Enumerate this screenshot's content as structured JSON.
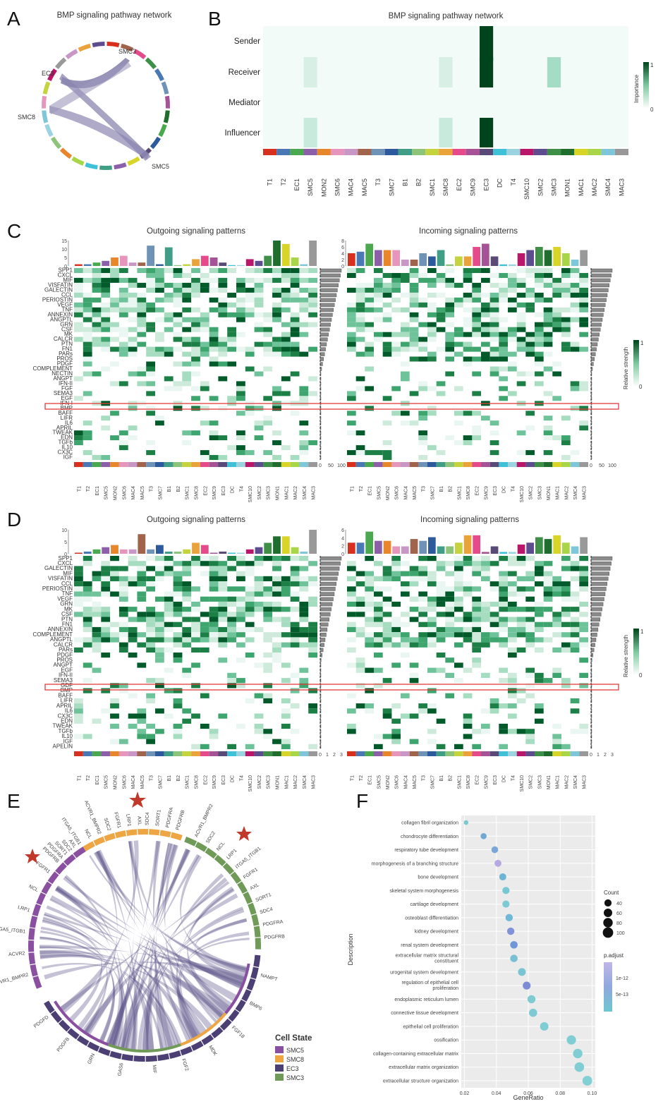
{
  "panels": {
    "A": {
      "letter": "A",
      "title": "BMP signaling pathway network",
      "labels": [
        "SMC3",
        "EC3",
        "SMC8",
        "SMC5"
      ]
    },
    "B": {
      "letter": "B",
      "title": "BMP signaling pathway network",
      "roles": [
        "Sender",
        "Receiver",
        "Mediator",
        "Influencer"
      ],
      "legend_title": "Importance",
      "legend_max": "1",
      "legend_min": "0",
      "cells": [
        "T1",
        "T2",
        "EC1",
        "SMC5",
        "MON2",
        "SMC6",
        "MAC4",
        "MAC5",
        "T3",
        "SMC7",
        "B1",
        "B2",
        "SMC1",
        "SMC8",
        "EC2",
        "SMC9",
        "EC3",
        "DC",
        "T4",
        "SMC10",
        "SMC2",
        "SMC3",
        "MON1",
        "MAC1",
        "MAC2",
        "SMC4",
        "MAC3"
      ],
      "cell_colors": [
        "#d7301f",
        "#4a78b5",
        "#4aa84e",
        "#8d5fa8",
        "#e8862c",
        "#e695bd",
        "#c997c6",
        "#a0634b",
        "#6e93b6",
        "#2c5a9c",
        "#3f9e85",
        "#8cc47a",
        "#c4d33e",
        "#eaa23a",
        "#e54b8a",
        "#a65297",
        "#5a4a78",
        "#3fc1d8",
        "#9bd4e0",
        "#b8176a",
        "#5e4d8e",
        "#3e9048",
        "#1f6e2e",
        "#d9d428",
        "#a9d548",
        "#7ec6d9",
        "#999999"
      ]
    },
    "C": {
      "letter": "C",
      "out_title": "Outgoing signaling patterns",
      "in_title": "Incoming signaling patterns",
      "legend_title": "Relative strength",
      "legend_max": "1",
      "legend_min": "0",
      "out_bar_ticks": [
        "15",
        "10",
        "5",
        "0"
      ],
      "in_bar_ticks": [
        "8",
        "6",
        "4",
        "2",
        "0"
      ],
      "side_ticks": [
        "0",
        "50",
        "100"
      ],
      "highlight": "BMP",
      "pathways": [
        "SPP1",
        "CXCL",
        "MIF",
        "VISFATIN",
        "GALECTIN",
        "CCL",
        "PERIOSTIN",
        "VEGF",
        "TNF",
        "ANNEXIN",
        "ANGPTL",
        "GRN",
        "CSF",
        "MK",
        "CALCR",
        "PTN",
        "FN1",
        "PARs",
        "PROS",
        "PDGF",
        "COMPLEMENT",
        "NECTIN",
        "ANGPT",
        "IFN-II",
        "FGF",
        "SEMA3",
        "EGF",
        "IFN-I",
        "BMP",
        "BAFF",
        "LIFR",
        "IL6",
        "APRIL",
        "TWEAK",
        "EDN",
        "TGFb",
        "IL10",
        "CX3C",
        "IGF"
      ]
    },
    "D": {
      "letter": "D",
      "out_title": "Outgoing signaling patterns",
      "in_title": "Incoming signaling patterns",
      "legend_title": "Relative strength",
      "legend_max": "1",
      "legend_min": "0",
      "out_bar_ticks": [
        "10",
        "5",
        "0"
      ],
      "in_bar_ticks": [
        "6",
        "4",
        "2",
        "0"
      ],
      "side_ticks": [
        "0",
        "1",
        "2",
        "3"
      ],
      "highlight": "BMP",
      "pathways": [
        "SPP1",
        "CXCL",
        "GALECTIN",
        "MIF",
        "VISFATIN",
        "CCL",
        "PERIOSTIN",
        "TNF",
        "VEGF",
        "GRN",
        "MK",
        "CSF",
        "PTN",
        "FN1",
        "ANNEXIN",
        "COMPLEMENT",
        "ANGPTL",
        "CALCR",
        "PARs",
        "PDGF",
        "PROS",
        "ANGPT",
        "EGF",
        "IFN-II",
        "SEMA3",
        "GDF",
        "BMP",
        "BAFF",
        "LIFR",
        "APRIL",
        "IL6",
        "CX3C",
        "EDN",
        "TWEAK",
        "TGFb",
        "IL10",
        "IGF",
        "APELIN"
      ]
    },
    "E": {
      "letter": "E",
      "legend_title": "Cell State",
      "legend": [
        {
          "name": "SMC5",
          "color": "#8a4fa0"
        },
        {
          "name": "SMC8",
          "color": "#eea645"
        },
        {
          "name": "EC3",
          "color": "#4b3f74"
        },
        {
          "name": "SMC3",
          "color": "#6f9a57"
        }
      ],
      "smc5_labels": [
        "ACVR1_BMPR2",
        "ACVR2",
        "ITGA5_ITGB1",
        "LRP1",
        "NCL",
        "FGFR1"
      ],
      "smc5_top_labels": [
        "PDGFRB",
        "PDGFRA",
        "SORT1",
        "SDC2",
        "AXL",
        "ITGA5_ITGB1"
      ],
      "smc8_labels": [
        "NCL",
        "ACVR1_BMPR2",
        "SDC2",
        "FGFR1",
        "LRP1",
        "AXL",
        "SDC4",
        "SORT1",
        "PDGFRA",
        "PDGFRB"
      ],
      "smc3_labels": [
        "ACVR1_BMPR2",
        "SDC2",
        "NCL",
        "LRP1",
        "ITGA5_ITGB1",
        "FGFR1",
        "AXL",
        "SORT1",
        "SDC4",
        "PDGFRA",
        "PDGFRB"
      ],
      "ec3_labels": [
        "PDGFD",
        "PDGFB",
        "GRN",
        "GAS6",
        "MIF",
        "FGF2",
        "MDK",
        "FGF18",
        "BMP6",
        "NAMPT"
      ]
    },
    "F": {
      "letter": "F",
      "xlabel": "GeneRatio",
      "ylabel": "Description",
      "size_title": "Count",
      "size_ticks": [
        "40",
        "60",
        "80",
        "100"
      ],
      "color_title": "p.adjust",
      "color_ticks": [
        "1e-12",
        "5e-13"
      ]
    }
  },
  "chart_data": {
    "type": "scatter",
    "xlabel": "GeneRatio",
    "ylabel": "Description",
    "xlim": [
      0.02,
      0.1
    ],
    "xticks": [
      "0.02",
      "0.04",
      "0.06",
      "0.08",
      "0.10"
    ],
    "categories": [
      "collagen fibril organization",
      "chondrocyte differentiation",
      "respiratory tube development",
      "morphogenesis of a branching structure",
      "bone development",
      "skeletal system morphogenesis",
      "cartilage development",
      "osteoblast differentiation",
      "kidney development",
      "renal system development",
      "extracellular matrix structural constituent",
      "urogenital system development",
      "regulation of epithelial cell proliferation",
      "endoplasmic reticulum lumen",
      "connective tissue development",
      "epithelial cell proliferation",
      "ossification",
      "collagen-containing extracellular matrix",
      "extracellular matrix organization",
      "extracellular structure organization"
    ],
    "x": [
      0.021,
      0.032,
      0.039,
      0.041,
      0.044,
      0.046,
      0.046,
      0.048,
      0.049,
      0.051,
      0.051,
      0.056,
      0.059,
      0.062,
      0.063,
      0.07,
      0.087,
      0.091,
      0.092,
      0.097
    ],
    "count": [
      12,
      25,
      33,
      35,
      37,
      40,
      40,
      41,
      42,
      44,
      44,
      48,
      51,
      53,
      55,
      61,
      76,
      80,
      81,
      86
    ],
    "p_adjust_color": [
      "#7ec8cf",
      "#6fa8d4",
      "#7ba6d8",
      "#b6a9e0",
      "#6fb4d5",
      "#79c7d2",
      "#7ecad2",
      "#6fb8d8",
      "#8192d8",
      "#6f96d8",
      "#7ac0d4",
      "#78c5d3",
      "#7c8cd6",
      "#7fcbd2",
      "#7ec9d3",
      "#7fcdd3",
      "#80ced3",
      "#80ced3",
      "#80ced3",
      "#82cfd4"
    ]
  }
}
